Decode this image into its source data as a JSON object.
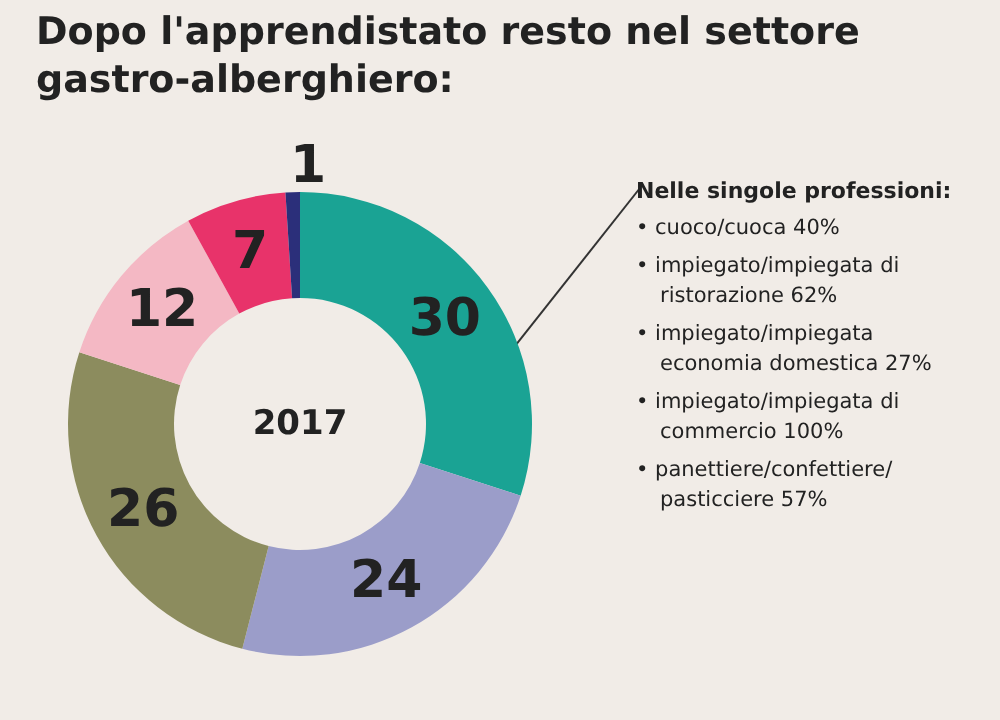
{
  "chart_data": {
    "type": "donut",
    "title": "Dopo l'apprendistato resto nel settore gastro-alberghiero:",
    "categories": [
      null,
      null,
      null,
      null,
      null,
      null
    ],
    "values": [
      30,
      24,
      26,
      12,
      7,
      1
    ],
    "colors": [
      "#1aa394",
      "#9b9dc9",
      "#8c8c5e",
      "#f4b8c4",
      "#e8336a",
      "#2b2f7a"
    ],
    "data_labels": true,
    "annotations": [
      "2017",
      "Nelle singole professioni:",
      "• cuoco/cuoca 40%",
      "• impiegato/impiegata di ristorazione 62%",
      "• impiegato/impiegata economia domestica 27%",
      "• impiegato/impiegata di commercio 100%",
      "• panettiere/confettiere/ pasticciere 57%"
    ]
  }
}
